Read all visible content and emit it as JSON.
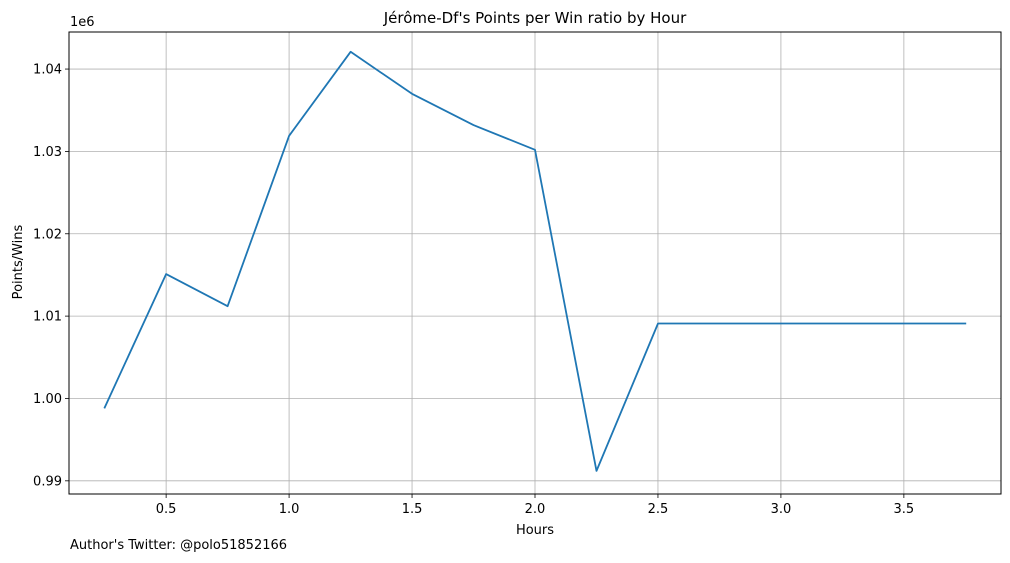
{
  "chart_data": {
    "type": "line",
    "title": "Jérôme-Df's Points per Win ratio by Hour",
    "xlabel": "Hours",
    "ylabel": "Points/Wins",
    "y_offset_label": "1e6",
    "xlim": [
      0.105,
      3.895
    ],
    "ylim": [
      0.9884,
      1.0445
    ],
    "x_ticks": [
      0.5,
      1.0,
      1.5,
      2.0,
      2.5,
      3.0,
      3.5
    ],
    "x_tick_labels": [
      "0.5",
      "1.0",
      "1.5",
      "2.0",
      "2.5",
      "3.0",
      "3.5"
    ],
    "y_ticks": [
      0.99,
      1.0,
      1.01,
      1.02,
      1.03,
      1.04
    ],
    "y_tick_labels": [
      "0.99",
      "1.00",
      "1.01",
      "1.02",
      "1.03",
      "1.04"
    ],
    "grid": true,
    "series": [
      {
        "color": "#1f77b4",
        "x": [
          0.25,
          0.5,
          0.75,
          1.0,
          1.25,
          1.5,
          1.75,
          2.0,
          2.25,
          2.5,
          2.75,
          3.0,
          3.25,
          3.5,
          3.75
        ],
        "y": [
          0.9989,
          1.0151,
          1.0112,
          1.0319,
          1.0421,
          1.037,
          1.0332,
          1.0302,
          0.9912,
          1.0091,
          1.0091,
          1.0091,
          1.0091,
          1.0091,
          1.0091
        ]
      }
    ]
  },
  "footer": {
    "note": "Author's Twitter: @polo51852166"
  }
}
